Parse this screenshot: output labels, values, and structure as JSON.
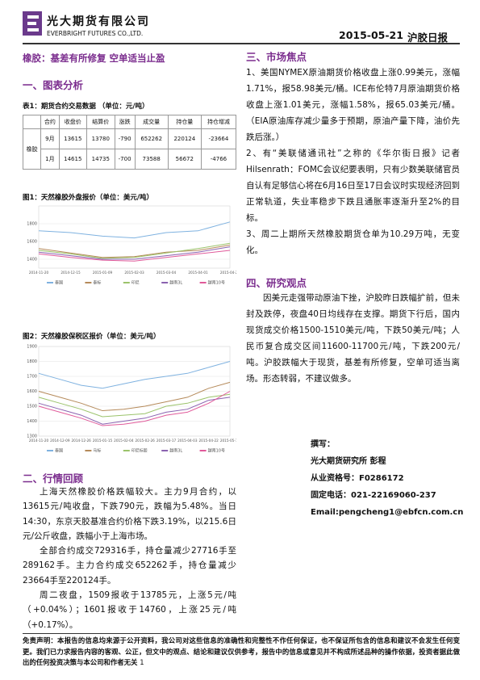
{
  "header": {
    "company": "光大期货有限公司",
    "company_en": "EVERBRIGHT FUTURES CO.,LTD.",
    "date": "2015-05-21",
    "report": "沪胶日报"
  },
  "headline": "橡胶：基差有所修复 空单适当止盈",
  "section1": "一、图表分析",
  "table": {
    "caption": "表1：期货合约交易数据 （单位：元/吨）",
    "group": "橡胶",
    "header": [
      "合约",
      "收盘价",
      "结算价",
      "涨跌",
      "成交量",
      "持仓量",
      "持仓增减"
    ],
    "rows": [
      [
        "9月",
        13615,
        13780,
        -790,
        652262,
        220124,
        -23664
      ],
      [
        "1月",
        14615,
        14735,
        -700,
        73588,
        56672,
        -4766
      ]
    ]
  },
  "chart_data": [
    {
      "type": "line",
      "title": "图1：天然橡胶外盘报价（单位：美元/吨）",
      "categories": [
        "2014-11-20",
        "2014-12-15",
        "2015-01-09",
        "2015-02-03",
        "2015-03-04",
        "2015-04-01",
        "2015-04-27"
      ],
      "ylim": [
        1300,
        2000
      ],
      "yticks": [
        1400,
        1600,
        1800
      ],
      "series": [
        {
          "name": "泰国",
          "color": "#7fb2e0",
          "values": [
            1720,
            1700,
            1660,
            1640,
            1700,
            1720,
            1820
          ]
        },
        {
          "name": "泰标",
          "color": "#b58a5a",
          "values": [
            1520,
            1470,
            1420,
            1430,
            1480,
            1500,
            1560
          ]
        },
        {
          "name": "印尼",
          "color": "#9bc36b",
          "values": [
            1500,
            1460,
            1410,
            1420,
            1470,
            1520,
            1580
          ]
        },
        {
          "name": "越南3L",
          "color": "#8a62b0",
          "values": [
            1480,
            1440,
            1400,
            1400,
            1440,
            1480,
            1540
          ]
        },
        {
          "name": "越南10号",
          "color": "#e05a9a",
          "values": [
            1460,
            1420,
            1390,
            1380,
            1420,
            1460,
            1500
          ]
        }
      ]
    },
    {
      "type": "line",
      "title": "图2：天然橡胶保税区报价（单位：美元/吨）",
      "categories": [
        "2014-11-20",
        "2014-12-09",
        "2014-12-26",
        "2015-01-15",
        "2015-02-04",
        "2015-02-26",
        "2015-03-17",
        "2015-04-03",
        "2015-04-22",
        "2015-05-12"
      ],
      "ylim": [
        1300,
        1900
      ],
      "yticks": [
        1300,
        1400,
        1500,
        1600,
        1700,
        1800,
        1900
      ],
      "series": [
        {
          "name": "泰国",
          "color": "#7fb2e0",
          "values": [
            1720,
            1680,
            1640,
            1620,
            1650,
            1680,
            1700,
            1720,
            1760,
            1800
          ]
        },
        {
          "name": "马标",
          "color": "#b58a5a",
          "values": [
            1600,
            1560,
            1520,
            1470,
            1480,
            1500,
            1530,
            1560,
            1620,
            1660
          ]
        },
        {
          "name": "印尼标胶",
          "color": "#9bc36b",
          "values": [
            1560,
            1520,
            1480,
            1430,
            1440,
            1450,
            1500,
            1520,
            1560,
            1580
          ]
        },
        {
          "name": "越南3L",
          "color": "#8a62b0",
          "values": [
            1520,
            1480,
            1440,
            1380,
            1400,
            1420,
            1460,
            1480,
            1540,
            1560
          ]
        },
        {
          "name": "越南10号",
          "color": "#e05a9a",
          "values": [
            1500,
            1460,
            1420,
            1370,
            1380,
            1400,
            1440,
            1460,
            1520,
            1600
          ]
        }
      ]
    }
  ],
  "section2": {
    "title": "二、行情回顾",
    "paragraphs": [
      "上海天然橡胶价格跌幅较大。主力9月合约，以13615元/吨收盘，下跌790元，跌幅为5.48%。当日14:30，东京天胶基准合约价格下跌3.19%，以215.6日元/公斤收盘，跌幅小于上海市场。",
      "全部合约成交729316手，持仓量减少27716手至289162手。主力合约成交652262手，持仓量减少23664手至220124手。",
      "周二夜盘，1509报收于13785元，上涨5元/吨（+0.04%）；1601报收于14760，上涨25元/吨（+0.17%）。"
    ]
  },
  "section3": {
    "title": "三、市场焦点",
    "paragraphs": [
      "1、美国NYMEX原油期货价格收盘上涨0.99美元，涨幅1.71%，报58.98美元/桶。ICE布伦特7月原油期货价格收盘上涨1.01美元，涨幅1.58%，报65.03美元/桶。（EIA原油库存减少量多于预期，原油产量下降，油价先跌后涨。）",
      "2、有“美联储通讯社”之称的《华尔街日报》记者Hilsenrath：FOMC会议纪要表明，只有少数美联储官员自认有足够信心将在6月16日至17日会议时实现经济回到正常轨道，失业率稳步下跌且通胀率逐渐升至2%的目标。",
      "3、周二上期所天然橡胶期货仓单为10.29万吨，无变化。"
    ]
  },
  "section4": {
    "title": "四、研究观点",
    "paragraphs": [
      "因美元走强带动原油下挫，沪胶昨日跌幅扩前，但未封及跌停，夜盘40日均线存在支撑。期货下行后，国内现货成交价格1500-1510美元/吨，下跌50美元/吨；人民币复合成交区间11600-11700元/吨，下跌200元/吨。沪胶跌幅大于现货，基差有所修复，空单可适当离场。形态转弱，不建议做多。"
    ]
  },
  "author": [
    "撰写：",
    "光大期货研究所 彭程",
    "从业资格号：F0286172",
    "固定电话：021-22169060-237",
    "Email:pengcheng1@ebfcn.com.cn"
  ],
  "footer": {
    "disclaimer": "免责声明：本报告的信息均来源于公开资料，我公司对这些信息的准确性和完整性不作任何保证，也不保证所包含的信息和建议不会发生任何变更。我们已力求报告内容的客观、公正，但文中的观点、结论和建议仅供参考，报告中的信息或意见并不构成所述品种的操作依据，投资者据此做出的任何投资决策与本公司和作者无关",
    "page": 1
  }
}
